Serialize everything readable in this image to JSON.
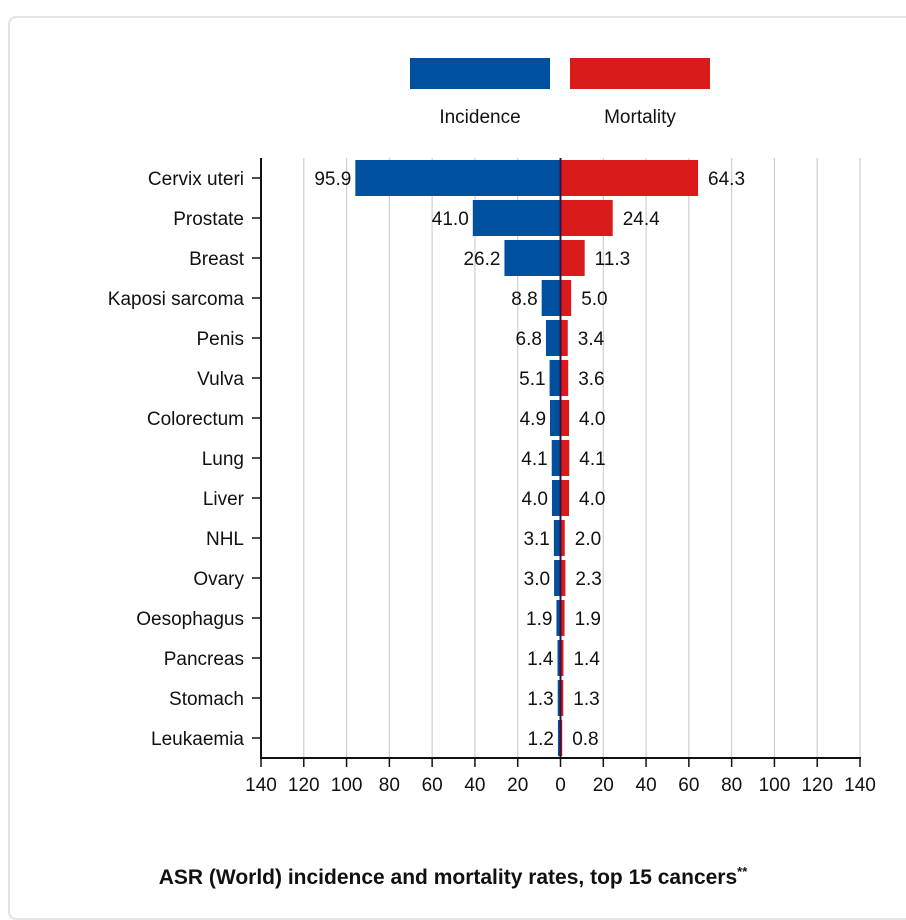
{
  "chart_data": {
    "type": "bar",
    "categories": [
      "Cervix uteri",
      "Prostate",
      "Breast",
      "Kaposi sarcoma",
      "Penis",
      "Vulva",
      "Colorectum",
      "Lung",
      "Liver",
      "NHL",
      "Ovary",
      "Oesophagus",
      "Pancreas",
      "Stomach",
      "Leukaemia"
    ],
    "series": [
      {
        "name": "Incidence",
        "color": "#0050a0",
        "values": [
          95.9,
          41.0,
          26.2,
          8.8,
          6.8,
          5.1,
          4.9,
          4.1,
          4.0,
          3.1,
          3.0,
          1.9,
          1.4,
          1.3,
          1.2
        ],
        "labels": [
          "95.9",
          "41.0",
          "26.2",
          "8.8",
          "6.8",
          "5.1",
          "4.9",
          "4.1",
          "4.0",
          "3.1",
          "3.0",
          "1.9",
          "1.4",
          "1.3",
          "1.2"
        ]
      },
      {
        "name": "Mortality",
        "color": "#d91b1b",
        "values": [
          64.3,
          24.4,
          11.3,
          5.0,
          3.4,
          3.6,
          4.0,
          4.1,
          4.0,
          2.0,
          2.3,
          1.9,
          1.4,
          1.3,
          0.8
        ],
        "labels": [
          "64.3",
          "24.4",
          "11.3",
          "5.0",
          "3.4",
          "3.6",
          "4.0",
          "4.1",
          "4.0",
          "2.0",
          "2.3",
          "1.9",
          "1.4",
          "1.3",
          "0.8"
        ]
      }
    ],
    "xlim": [
      -140,
      140
    ],
    "xticks": [
      -140,
      -120,
      -100,
      -80,
      -60,
      -40,
      -20,
      0,
      20,
      40,
      60,
      80,
      100,
      120,
      140
    ],
    "xtick_labels": [
      "140",
      "120",
      "100",
      "80",
      "60",
      "40",
      "20",
      "0",
      "20",
      "40",
      "60",
      "80",
      "100",
      "120",
      "140"
    ],
    "grid": true,
    "legend": "top",
    "title": "ASR (World) incidence and mortality rates, top 15 cancers",
    "title_superscript": "**"
  }
}
